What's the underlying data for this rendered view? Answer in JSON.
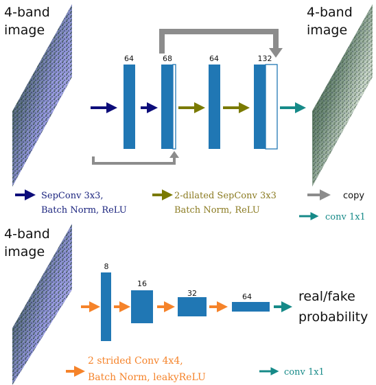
{
  "colors": {
    "block": "#2077b4",
    "navy": "#0d0d7a",
    "olive": "#7a7a00",
    "gray": "#8c8c8c",
    "teal": "#168a88",
    "orange": "#f5832a",
    "legend_olive_text": "#8a7a20",
    "legend_orange_text": "#f5832a"
  },
  "generator": {
    "input_label_line1": "4-band",
    "input_label_line2": "image",
    "output_label_line1": "4-band",
    "output_label_line2": "image",
    "channels": [
      "64",
      "68",
      "64",
      "132"
    ]
  },
  "legend": {
    "navy_line1": "SepConv  3x3,",
    "navy_line2": "Batch  Norm,  ReLU",
    "olive_line1": "2-dilated  SepConv  3x3",
    "olive_line2": "Batch  Norm,  ReLU",
    "copy": "copy",
    "conv1x1": "conv  1x1"
  },
  "discriminator": {
    "input_label_line1": "4-band",
    "input_label_line2": "image",
    "channels": [
      "8",
      "16",
      "32",
      "64"
    ],
    "output_line1": "real/fake",
    "output_line2": "probability",
    "legend_line1": "2  strided  Conv  4x4,",
    "legend_line2": "Batch  Norm,  leakyReLU",
    "conv1x1": "conv  1x1"
  }
}
